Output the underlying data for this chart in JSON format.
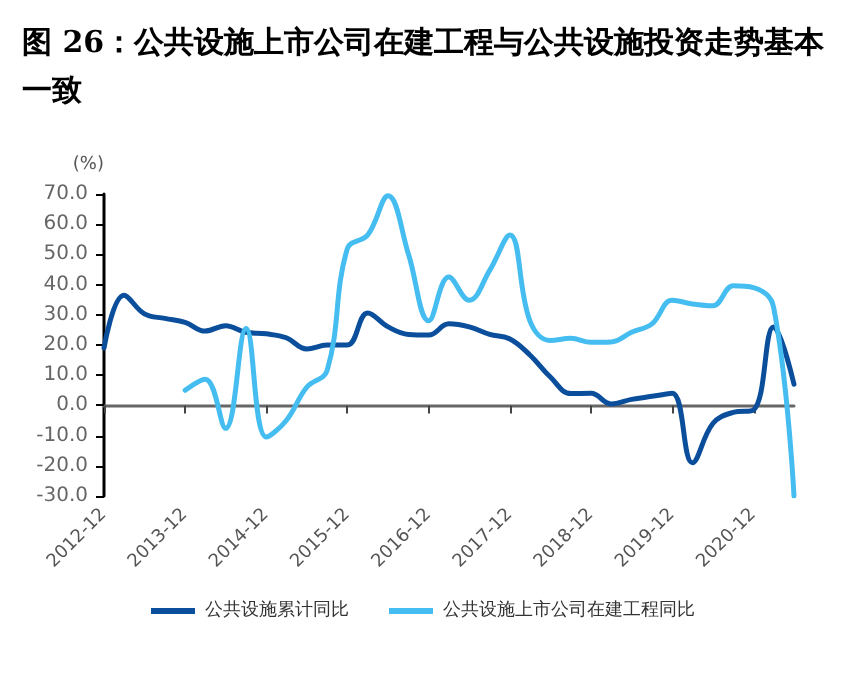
{
  "chart_data": {
    "type": "line",
    "title": "图 26：公共设施上市公司在建工程与公共设施投资走势基本一致",
    "ylabel": "(%)",
    "x": [
      "2012-12",
      "2013-03",
      "2013-06",
      "2013-09",
      "2013-12",
      "2014-03",
      "2014-06",
      "2014-09",
      "2014-12",
      "2015-03",
      "2015-06",
      "2015-09",
      "2015-12",
      "2016-03",
      "2016-06",
      "2016-09",
      "2016-12",
      "2017-03",
      "2017-06",
      "2017-09",
      "2017-12",
      "2018-03",
      "2018-06",
      "2018-09",
      "2018-12",
      "2019-03",
      "2019-06",
      "2019-09",
      "2019-12",
      "2020-03",
      "2020-06",
      "2020-09",
      "2020-12",
      "2021-03",
      "2021-06"
    ],
    "series": [
      {
        "name": "公共设施累计同比",
        "color": "#0b4f9c",
        "values": [
          19,
          36.5,
          30.3,
          28.8,
          27.5,
          24.6,
          26.4,
          24.2,
          23.7,
          22.4,
          18.7,
          20,
          20,
          30.6,
          26,
          23.5,
          23.3,
          27,
          26,
          23.5,
          22,
          16.7,
          9.4,
          3.9,
          4,
          0.5,
          2,
          3,
          4,
          -19,
          -6,
          -2.3,
          -1.5,
          26,
          7
        ]
      },
      {
        "name": "公共设施上市公司在建工程同比",
        "color": "#45bdf0",
        "values": [
          null,
          null,
          null,
          null,
          5,
          8.7,
          -7.6,
          25.5,
          -10.5,
          -5,
          6,
          11.6,
          52,
          56.4,
          69.4,
          50,
          28,
          42.5,
          34.8,
          44.7,
          56.4,
          28,
          21.5,
          22.2,
          20.9,
          21,
          24.2,
          27,
          34.8,
          33.6,
          33,
          39.6,
          39,
          32.6,
          -30
        ]
      }
    ],
    "xlim": [
      "2012-12",
      "2021-06"
    ],
    "xticks": [
      "2012-12",
      "2013-12",
      "2014-12",
      "2015-12",
      "2016-12",
      "2017-12",
      "2018-12",
      "2019-12",
      "2020-12"
    ],
    "ylim": [
      -30,
      70
    ],
    "yticks": [
      {
        "value": 70,
        "label": "70.0"
      },
      {
        "value": 60,
        "label": "60.0"
      },
      {
        "value": 50,
        "label": "50.0"
      },
      {
        "value": 40,
        "label": "40.0"
      },
      {
        "value": 30,
        "label": "30.0"
      },
      {
        "value": 20,
        "label": "20.0"
      },
      {
        "value": 10,
        "label": "10.0"
      },
      {
        "value": 0,
        "label": "0.0"
      },
      {
        "value": -10,
        "label": "-10.0"
      },
      {
        "value": -20,
        "label": "-20.0"
      },
      {
        "value": -30,
        "label": "-30.0"
      }
    ],
    "legend": "bottom",
    "marker": "none",
    "line_style": "solid"
  }
}
